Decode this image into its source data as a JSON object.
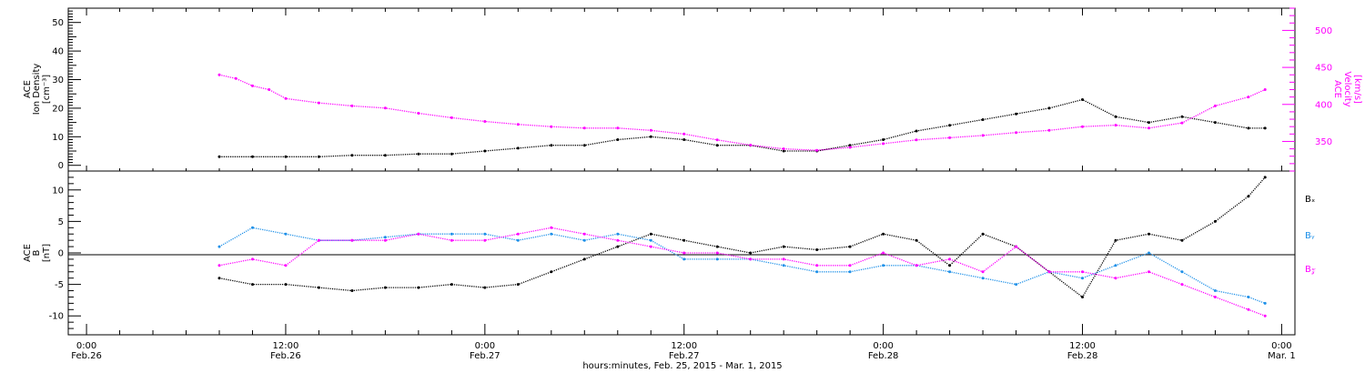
{
  "chart_data": [
    {
      "panel": "plasma",
      "type": "scatter",
      "ylabel_left": [
        "ACE",
        "Ion Density",
        "[cm⁻³]"
      ],
      "ylabel_right": [
        "ACE",
        "Velocity",
        "[km/s]"
      ],
      "ylim_left": [
        -2,
        55
      ],
      "ylim_right": [
        310,
        530
      ],
      "yticks_left": [
        "0",
        "10",
        "20",
        "30",
        "40",
        "50"
      ],
      "yticks_right": [
        "350",
        "400",
        "450",
        "500"
      ],
      "series": [
        {
          "color": "#000000",
          "axis": "left",
          "x": [
            8,
            10,
            12,
            14,
            16,
            18,
            20,
            22,
            24,
            26,
            28,
            30,
            32,
            34,
            36,
            38,
            40,
            42,
            44,
            46,
            48,
            50,
            52,
            54,
            56,
            58,
            60,
            62,
            64,
            66,
            68,
            70,
            71
          ],
          "y": [
            3,
            3,
            3,
            3,
            3.5,
            3.5,
            4,
            4,
            5,
            6,
            7,
            7,
            9,
            10,
            9,
            7,
            7,
            5,
            5,
            7,
            9,
            12,
            14,
            16,
            18,
            20,
            23,
            17,
            15,
            17,
            15,
            13,
            13
          ]
        },
        {
          "color": "#ff00ff",
          "axis": "right",
          "x": [
            8,
            9,
            10,
            11,
            12,
            14,
            16,
            18,
            20,
            22,
            24,
            26,
            28,
            30,
            32,
            34,
            36,
            38,
            40,
            42,
            44,
            46,
            48,
            50,
            52,
            54,
            56,
            58,
            60,
            62,
            64,
            66,
            68,
            70,
            71
          ],
          "y": [
            440,
            435,
            425,
            420,
            408,
            402,
            398,
            395,
            388,
            382,
            377,
            373,
            370,
            368,
            368,
            365,
            360,
            352,
            345,
            340,
            338,
            342,
            347,
            352,
            355,
            358,
            362,
            365,
            370,
            372,
            368,
            375,
            398,
            410,
            420
          ]
        }
      ]
    },
    {
      "panel": "field",
      "type": "scatter",
      "ylabel_left": [
        "ACE",
        "B",
        "[nT]"
      ],
      "ylim_left": [
        -13,
        13
      ],
      "yticks_left": [
        "-10",
        "-5",
        "0",
        "5",
        "10"
      ],
      "zero_line": true,
      "legend": [
        "Bₓ",
        "Bᵧ",
        "B𝓏"
      ],
      "series": [
        {
          "name": "Bₓ",
          "color": "#000000",
          "x": [
            8,
            10,
            12,
            14,
            16,
            18,
            20,
            22,
            24,
            26,
            28,
            30,
            32,
            34,
            36,
            38,
            40,
            42,
            44,
            46,
            48,
            50,
            52,
            54,
            56,
            58,
            60,
            62,
            64,
            66,
            68,
            70,
            71
          ],
          "y": [
            -4,
            -5,
            -5,
            -5.5,
            -6,
            -5.5,
            -5.5,
            -5,
            -5.5,
            -5,
            -3,
            -1,
            1,
            3,
            2,
            1,
            0,
            1,
            0.5,
            1,
            3,
            2,
            -2,
            3,
            1,
            -3,
            -7,
            2,
            3,
            2,
            5,
            9,
            12
          ]
        },
        {
          "name": "Bᵧ",
          "color": "#1e90e8",
          "x": [
            8,
            10,
            12,
            14,
            16,
            18,
            20,
            22,
            24,
            26,
            28,
            30,
            32,
            34,
            36,
            38,
            40,
            42,
            44,
            46,
            48,
            50,
            52,
            54,
            56,
            58,
            60,
            62,
            64,
            66,
            68,
            70,
            71
          ],
          "y": [
            1,
            4,
            3,
            2,
            2,
            2.5,
            3,
            3,
            3,
            2,
            3,
            2,
            3,
            2,
            -1,
            -1,
            -1,
            -2,
            -3,
            -3,
            -2,
            -2,
            -3,
            -4,
            -5,
            -3,
            -4,
            -2,
            0,
            -3,
            -6,
            -7,
            -8
          ]
        },
        {
          "name": "B𝓏",
          "color": "#ff00ff",
          "x": [
            8,
            10,
            12,
            14,
            16,
            18,
            20,
            22,
            24,
            26,
            28,
            30,
            32,
            34,
            36,
            38,
            40,
            42,
            44,
            46,
            48,
            50,
            52,
            54,
            56,
            58,
            60,
            62,
            64,
            66,
            68,
            70,
            71
          ],
          "y": [
            -2,
            -1,
            -2,
            2,
            2,
            2,
            3,
            2,
            2,
            3,
            4,
            3,
            2,
            1,
            0,
            0,
            -1,
            -1,
            -2,
            -2,
            0,
            -2,
            -1,
            -3,
            1,
            -3,
            -3,
            -4,
            -3,
            -5,
            -7,
            -9,
            -10
          ]
        }
      ]
    }
  ],
  "x_axis": {
    "ticks": [
      {
        "t": 0,
        "time": "0:00",
        "date": "Feb.26"
      },
      {
        "t": 12,
        "time": "12:00",
        "date": "Feb.26"
      },
      {
        "t": 24,
        "time": "0:00",
        "date": "Feb.27"
      },
      {
        "t": 36,
        "time": "12:00",
        "date": "Feb.27"
      },
      {
        "t": 48,
        "time": "0:00",
        "date": "Feb.28"
      },
      {
        "t": 60,
        "time": "12:00",
        "date": "Feb.28"
      },
      {
        "t": 72,
        "time": "0:00",
        "date": "Mar. 1"
      }
    ],
    "range": [
      -1.1,
      72.8
    ],
    "title": "hours:minutes, Feb. 25, 2015 - Mar. 1, 2015"
  },
  "colors": {
    "axis": "#000000",
    "magenta": "#ff00ff",
    "blue": "#1e90e8"
  }
}
